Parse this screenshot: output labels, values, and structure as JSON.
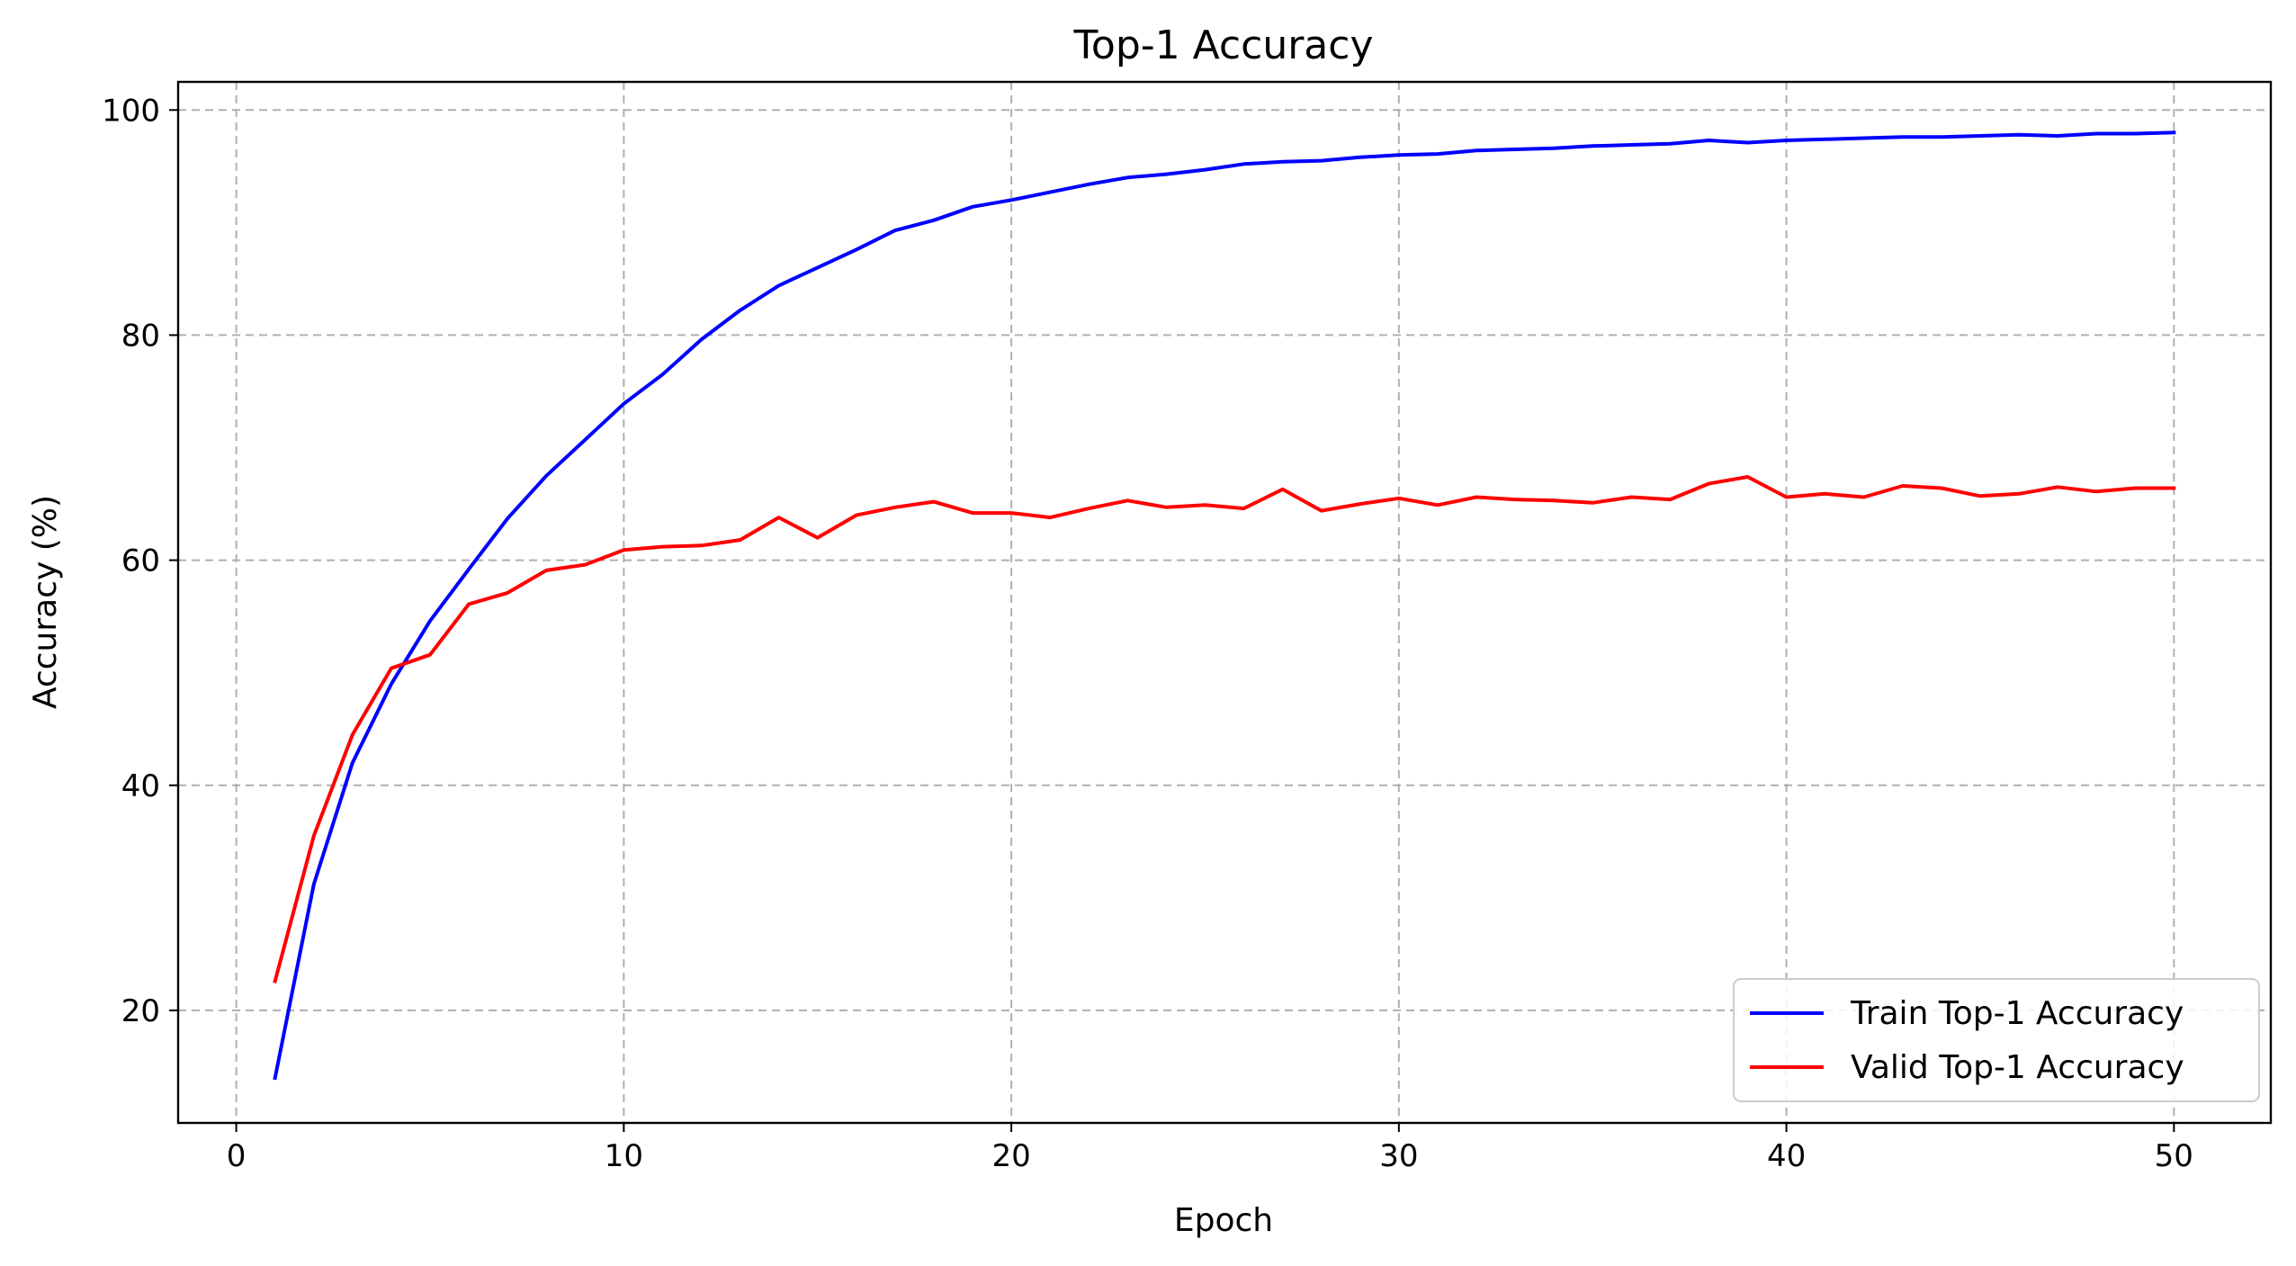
{
  "chart_data": {
    "type": "line",
    "title": "Top-1 Accuracy",
    "xlabel": "Epoch",
    "ylabel": "Accuracy (%)",
    "xlim": [
      -1.5,
      52.5
    ],
    "ylim": [
      10,
      102.5
    ],
    "xticks": [
      0,
      10,
      20,
      30,
      40,
      50
    ],
    "yticks": [
      20,
      40,
      60,
      80,
      100
    ],
    "grid": true,
    "legend_position": "bottom-right",
    "x": [
      1,
      2,
      3,
      4,
      5,
      6,
      7,
      8,
      9,
      10,
      11,
      12,
      13,
      14,
      15,
      16,
      17,
      18,
      19,
      20,
      21,
      22,
      23,
      24,
      25,
      26,
      27,
      28,
      29,
      30,
      31,
      32,
      33,
      34,
      35,
      36,
      37,
      38,
      39,
      40,
      41,
      42,
      43,
      44,
      45,
      46,
      47,
      48,
      49,
      50
    ],
    "series": [
      {
        "name": "Train Top-1 Accuracy",
        "color": "#0000ff",
        "values": [
          14.0,
          31.2,
          42.0,
          49.0,
          54.6,
          59.2,
          63.7,
          67.5,
          70.7,
          73.9,
          76.5,
          79.6,
          82.2,
          84.4,
          86.0,
          87.6,
          89.3,
          90.2,
          91.4,
          92.0,
          92.7,
          93.4,
          94.0,
          94.3,
          94.7,
          95.2,
          95.4,
          95.5,
          95.8,
          96.0,
          96.1,
          96.4,
          96.5,
          96.6,
          96.8,
          96.9,
          97.0,
          97.3,
          97.1,
          97.3,
          97.4,
          97.5,
          97.6,
          97.6,
          97.7,
          97.8,
          97.7,
          97.9,
          97.9,
          98.0
        ]
      },
      {
        "name": "Valid Top-1 Accuracy",
        "color": "#ff0000",
        "values": [
          22.6,
          35.5,
          44.5,
          50.4,
          51.6,
          56.1,
          57.1,
          59.1,
          59.6,
          60.9,
          61.2,
          61.3,
          61.8,
          63.8,
          62.0,
          64.0,
          64.7,
          65.2,
          64.2,
          64.2,
          63.8,
          64.6,
          65.3,
          64.7,
          64.9,
          64.6,
          66.3,
          64.4,
          65.0,
          65.5,
          64.9,
          65.6,
          65.4,
          65.3,
          65.1,
          65.6,
          65.4,
          66.8,
          67.4,
          65.6,
          65.9,
          65.6,
          66.6,
          66.4,
          65.7,
          65.9,
          66.5,
          66.1,
          66.4,
          66.4
        ]
      }
    ]
  }
}
